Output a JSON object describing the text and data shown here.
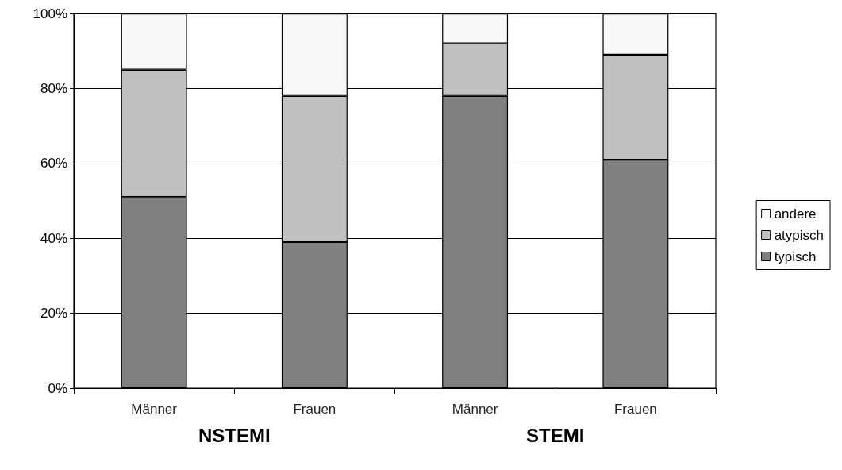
{
  "chart_data": {
    "type": "bar",
    "stacked": true,
    "categories": [
      "Männer",
      "Frauen",
      "Männer",
      "Frauen"
    ],
    "series": [
      {
        "name": "typisch",
        "color": "#808080",
        "values": [
          51,
          39,
          78,
          61
        ]
      },
      {
        "name": "atypisch",
        "color": "#c0c0c0",
        "values": [
          34,
          39,
          14,
          28
        ]
      },
      {
        "name": "andere",
        "color": "#f8f8f8",
        "values": [
          15,
          22,
          8,
          11
        ]
      }
    ],
    "ylim": [
      0,
      100
    ],
    "yticks": [
      {
        "value": 0,
        "label": "0%"
      },
      {
        "value": 20,
        "label": "20%"
      },
      {
        "value": 40,
        "label": "40%"
      },
      {
        "value": 60,
        "label": "60%"
      },
      {
        "value": 80,
        "label": "80%"
      },
      {
        "value": 100,
        "label": "100%"
      }
    ],
    "grid": "y",
    "legend": "right",
    "annotations": [
      "NSTEMI",
      "STEMI"
    ]
  }
}
